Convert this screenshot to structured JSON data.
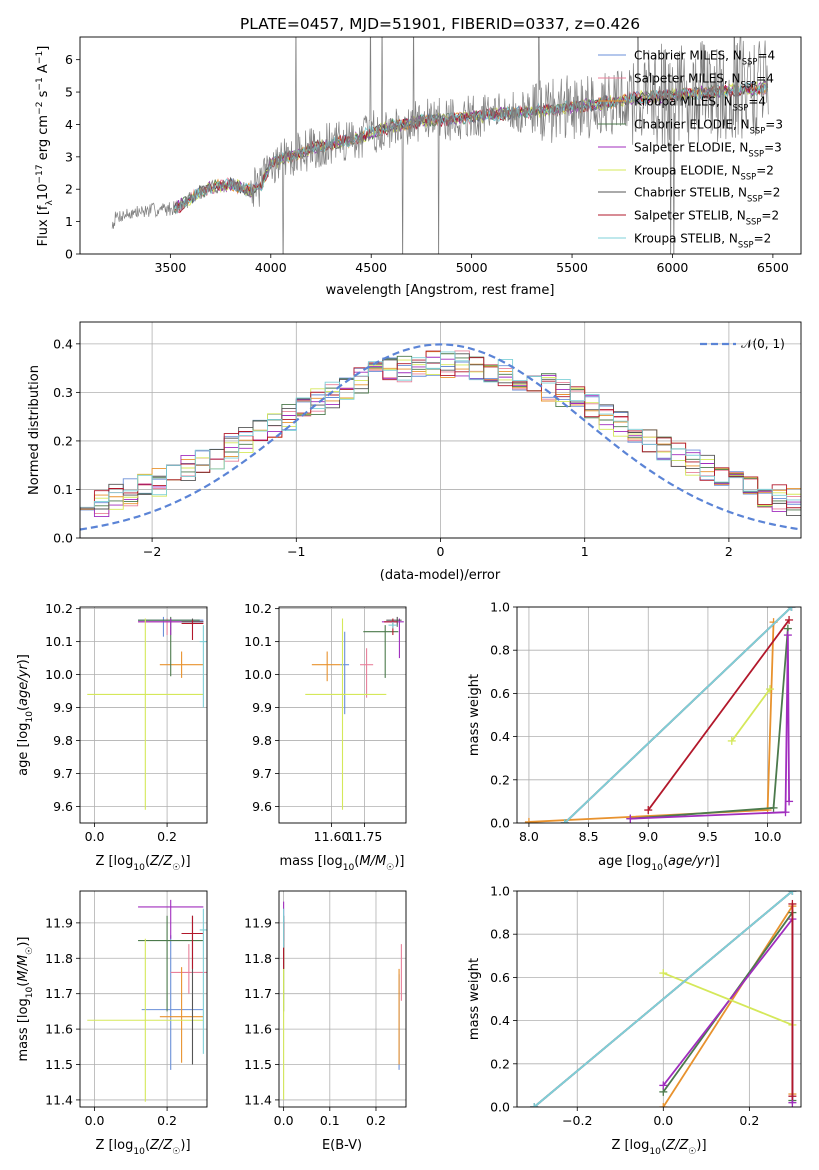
{
  "figure": {
    "title": "PLATE=0457, MJD=51901, FIBERID=0337, z=0.426"
  },
  "models": [
    {
      "name": "Chabrier MILES",
      "nssp": "4",
      "color": "#6a8fd8"
    },
    {
      "name": "Salpeter MILES",
      "nssp": "4",
      "color": "#e8809a"
    },
    {
      "name": "Kroupa MILES",
      "nssp": "4",
      "color": "#e8922e"
    },
    {
      "name": "Chabrier ELODIE",
      "nssp": "3",
      "color": "#4c7a4c"
    },
    {
      "name": "Salpeter ELODIE",
      "nssp": "3",
      "color": "#a02dbe"
    },
    {
      "name": "Kroupa ELODIE",
      "nssp": "2",
      "color": "#d5e85a"
    },
    {
      "name": "Chabrier STELIB",
      "nssp": "2",
      "color": "#555555"
    },
    {
      "name": "Salpeter STELIB",
      "nssp": "2",
      "color": "#b2182b"
    },
    {
      "name": "Kroupa STELIB",
      "nssp": "2",
      "color": "#7fd0d8"
    }
  ],
  "chart_data": [
    {
      "id": "spectrum",
      "type": "line",
      "xlabel": "wavelength [Angstrom, rest frame]",
      "ylabel": "Flux [f_λ 10^-17 erg cm^-2 s^-1 A^-1]",
      "xlim": [
        3050,
        6640
      ],
      "ylim": [
        0,
        6.7
      ],
      "xticks": [
        3500,
        4000,
        4500,
        5000,
        5500,
        6000,
        6500
      ],
      "yticks": [
        0,
        1,
        2,
        3,
        4,
        5,
        6
      ],
      "data_color": "#808080",
      "data_range": [
        3210,
        6480
      ],
      "model_range": [
        3520,
        6480
      ],
      "continuum": {
        "x": [
          3210,
          3230,
          3300,
          3400,
          3500,
          3550,
          3600,
          3650,
          3700,
          3750,
          3800,
          3850,
          3900,
          3950,
          4000,
          4100,
          4200,
          4300,
          4400,
          4500,
          4600,
          4700,
          4800,
          4900,
          5000,
          5100,
          5200,
          5300,
          5400,
          5500,
          5600,
          5700,
          5800,
          5900,
          6000,
          6100,
          6200,
          6300,
          6400,
          6480
        ],
        "y": [
          0.9,
          1.15,
          1.25,
          1.35,
          1.4,
          1.5,
          1.7,
          1.9,
          2.05,
          2.1,
          2.15,
          2.05,
          1.95,
          2.1,
          2.8,
          3.0,
          3.25,
          3.4,
          3.5,
          3.75,
          3.95,
          4.05,
          4.15,
          4.15,
          4.25,
          4.3,
          4.35,
          4.4,
          4.45,
          4.55,
          4.6,
          4.7,
          4.8,
          4.85,
          4.9,
          4.95,
          5.0,
          5.05,
          5.1,
          5.15
        ]
      },
      "legend_position": "upper right"
    },
    {
      "id": "residuals",
      "type": "line",
      "xlabel": "(data-model)/error",
      "ylabel": "Normed distribution",
      "xlim": [
        -2.5,
        2.5
      ],
      "ylim": [
        0,
        0.445
      ],
      "xticks": [
        -2,
        -1,
        0,
        1,
        2
      ],
      "yticks": [
        0.0,
        0.1,
        0.2,
        0.3,
        0.4
      ],
      "gaussian": {
        "label": "𝒩(0, 1)",
        "mean": 0,
        "sigma": 1,
        "color": "#5b84d6"
      },
      "hist_bins": [
        -2.5,
        2.5,
        50
      ],
      "legend_position": "upper right"
    },
    {
      "id": "age-vs-z",
      "type": "scatter",
      "xlabel": "Z [log10(Z/Z☉)]",
      "ylabel": "age [log10(age/yr)]",
      "xlim": [
        -0.04,
        0.31
      ],
      "ylim": [
        9.55,
        10.205
      ],
      "xticks": [
        0.0,
        0.2
      ],
      "yticks": [
        9.6,
        9.7,
        9.8,
        9.9,
        10.0,
        10.1,
        10.2
      ],
      "points": [
        {
          "x": 0.19,
          "y": 10.165,
          "xerr": [
            0.07,
            0.11
          ],
          "yerr": [
            0.05,
            0.01
          ],
          "model": 0
        },
        {
          "x": 0.2,
          "y": 10.16,
          "xerr": [
            0.08,
            0.1
          ],
          "yerr": [
            0.04,
            0.01
          ],
          "model": 1
        },
        {
          "x": 0.24,
          "y": 10.03,
          "xerr": [
            0.06,
            0.06
          ],
          "yerr": [
            0.04,
            0.04
          ],
          "model": 2
        },
        {
          "x": 0.21,
          "y": 10.165,
          "xerr": [
            0.09,
            0.08
          ],
          "yerr": [
            0.17,
            0.01
          ],
          "model": 3
        },
        {
          "x": 0.21,
          "y": 10.16,
          "xerr": [
            0.09,
            0.09
          ],
          "yerr": [
            0.04,
            0.01
          ],
          "model": 4
        },
        {
          "x": 0.14,
          "y": 9.94,
          "xerr": [
            0.16,
            0.16
          ],
          "yerr": [
            0.35,
            0.23
          ],
          "model": 5
        },
        {
          "x": 0.27,
          "y": 10.16,
          "xerr": [
            0.03,
            0.03
          ],
          "yerr": [
            0.01,
            0.01
          ],
          "model": 6
        },
        {
          "x": 0.27,
          "y": 10.155,
          "xerr": [
            0.03,
            0.03
          ],
          "yerr": [
            0.05,
            0.01
          ],
          "model": 7
        },
        {
          "x": 0.3,
          "y": 10.1,
          "xerr": [
            0.01,
            0.01
          ],
          "yerr": [
            0.2,
            0.05
          ],
          "model": 8
        }
      ]
    },
    {
      "id": "age-vs-mass",
      "type": "scatter",
      "xlabel": "mass [log10(M/M☉)]",
      "ylabel": "",
      "xlim": [
        11.36,
        11.94
      ],
      "ylim": [
        9.55,
        10.205
      ],
      "xticks": [
        11.6,
        11.75
      ],
      "yticks": [
        9.6,
        9.7,
        9.8,
        9.9,
        10.0,
        10.1,
        10.2
      ],
      "points": [
        {
          "x": 11.66,
          "y": 10.03,
          "xerr": [
            0.02,
            0.02
          ],
          "yerr": [
            0.15,
            0.1
          ],
          "model": 0
        },
        {
          "x": 11.76,
          "y": 10.03,
          "xerr": [
            0.03,
            0.03
          ],
          "yerr": [
            0.1,
            0.05
          ],
          "model": 1
        },
        {
          "x": 11.58,
          "y": 10.03,
          "xerr": [
            0.07,
            0.06
          ],
          "yerr": [
            0.05,
            0.04
          ],
          "model": 2
        },
        {
          "x": 11.845,
          "y": 10.13,
          "xerr": [
            0.1,
            0.06
          ],
          "yerr": [
            0.14,
            0.02
          ],
          "model": 3
        },
        {
          "x": 11.91,
          "y": 10.16,
          "xerr": [
            0.08,
            0.02
          ],
          "yerr": [
            0.11,
            0.01
          ],
          "model": 4
        },
        {
          "x": 11.65,
          "y": 9.94,
          "xerr": [
            0.17,
            0.2
          ],
          "yerr": [
            0.35,
            0.23
          ],
          "model": 5
        },
        {
          "x": 11.9,
          "y": 10.165,
          "xerr": [
            0.05,
            0.02
          ],
          "yerr": [
            0.02,
            0.01
          ],
          "model": 6
        },
        {
          "x": 11.88,
          "y": 10.16,
          "xerr": [
            0.04,
            0.02
          ],
          "yerr": [
            0.04,
            0.01
          ],
          "model": 7
        },
        {
          "x": 11.88,
          "y": 10.15,
          "xerr": [
            0.02,
            0.02
          ],
          "yerr": [
            0.01,
            0.01
          ],
          "model": 8
        }
      ]
    },
    {
      "id": "weight-vs-age",
      "type": "line",
      "xlabel": "age [log10(age/yr)]",
      "ylabel": "mass weight",
      "xlim": [
        7.9,
        10.28
      ],
      "ylim": [
        0,
        1.0
      ],
      "xticks": [
        8.0,
        8.5,
        9.0,
        9.5,
        10.0
      ],
      "yticks": [
        0.0,
        0.2,
        0.4,
        0.6,
        0.8,
        1.0
      ],
      "series": [
        {
          "model": 0,
          "x": [
            8.3,
            10.2
          ],
          "y": [
            0.0,
            1.0
          ]
        },
        {
          "model": 1,
          "x": [
            8.3,
            10.2
          ],
          "y": [
            0.0,
            1.0
          ]
        },
        {
          "model": 2,
          "x": [
            8.0,
            10.0,
            10.05
          ],
          "y": [
            0.005,
            0.06,
            0.93
          ]
        },
        {
          "model": 3,
          "x": [
            8.85,
            10.05,
            10.17
          ],
          "y": [
            0.02,
            0.07,
            0.9
          ]
        },
        {
          "model": 4,
          "x": [
            8.85,
            10.15,
            10.17,
            10.18
          ],
          "y": [
            0.02,
            0.05,
            0.87,
            0.1
          ]
        },
        {
          "model": 5,
          "x": [
            9.7,
            10.02
          ],
          "y": [
            0.38,
            0.62
          ]
        },
        {
          "model": 6,
          "x": [
            8.3,
            10.2
          ],
          "y": [
            0.0,
            1.0
          ]
        },
        {
          "model": 7,
          "x": [
            9.0,
            10.18
          ],
          "y": [
            0.06,
            0.94
          ]
        },
        {
          "model": 8,
          "x": [
            8.3,
            10.2
          ],
          "y": [
            0.0,
            1.0
          ]
        }
      ]
    },
    {
      "id": "mass-vs-z",
      "type": "scatter",
      "xlabel": "Z [log10(Z/Z☉)]",
      "ylabel": "mass [log10(M/M☉)]",
      "xlim": [
        -0.04,
        0.31
      ],
      "ylim": [
        11.38,
        11.99
      ],
      "xticks": [
        0.0,
        0.2
      ],
      "yticks": [
        11.4,
        11.5,
        11.6,
        11.7,
        11.8,
        11.9
      ],
      "points": [
        {
          "x": 0.21,
          "y": 11.655,
          "xerr": [
            0.08,
            0.09
          ],
          "yerr": [
            0.17,
            0.21
          ],
          "model": 0
        },
        {
          "x": 0.26,
          "y": 11.76,
          "xerr": [
            0.05,
            0.05
          ],
          "yerr": [
            0.06,
            0.08
          ],
          "model": 1
        },
        {
          "x": 0.24,
          "y": 11.635,
          "xerr": [
            0.06,
            0.06
          ],
          "yerr": [
            0.13,
            0.14
          ],
          "model": 2
        },
        {
          "x": 0.2,
          "y": 11.85,
          "xerr": [
            0.08,
            0.1
          ],
          "yerr": [
            0.2,
            0.07
          ],
          "model": 3
        },
        {
          "x": 0.21,
          "y": 11.945,
          "xerr": [
            0.09,
            0.09
          ],
          "yerr": [
            0.09,
            0.02
          ],
          "model": 4
        },
        {
          "x": 0.14,
          "y": 11.625,
          "xerr": [
            0.16,
            0.16
          ],
          "yerr": [
            0.23,
            0.23
          ],
          "model": 5
        },
        {
          "x": 0.27,
          "y": 11.87,
          "xerr": [
            0.03,
            0.03
          ],
          "yerr": [
            0.37,
            0.05
          ],
          "model": 6
        },
        {
          "x": 0.27,
          "y": 11.87,
          "xerr": [
            0.03,
            0.03
          ],
          "yerr": [
            0.1,
            0.05
          ],
          "model": 7
        },
        {
          "x": 0.3,
          "y": 11.88,
          "xerr": [
            0.01,
            0.01
          ],
          "yerr": [
            0.35,
            0.06
          ],
          "model": 8
        }
      ]
    },
    {
      "id": "mass-vs-ebv",
      "type": "scatter",
      "xlabel": "E(B-V)",
      "ylabel": "",
      "xlim": [
        -0.01,
        0.265
      ],
      "ylim": [
        11.38,
        11.99
      ],
      "xticks": [
        0.0,
        0.1,
        0.2
      ],
      "yticks": [
        11.4,
        11.5,
        11.6,
        11.7,
        11.8,
        11.9
      ],
      "points": [
        {
          "x": 0.25,
          "y": 11.655,
          "xerr": [
            0.0,
            0.0
          ],
          "yerr": [
            0.17,
            0.1
          ],
          "model": 0
        },
        {
          "x": 0.255,
          "y": 11.76,
          "xerr": [
            0.0,
            0.0
          ],
          "yerr": [
            0.08,
            0.08
          ],
          "model": 1
        },
        {
          "x": 0.25,
          "y": 11.65,
          "xerr": [
            0.0,
            0.0
          ],
          "yerr": [
            0.15,
            0.12
          ],
          "model": 2
        },
        {
          "x": 0.0,
          "y": 11.85,
          "xerr": [
            0.0,
            0.0
          ],
          "yerr": [
            0.2,
            0.07
          ],
          "model": 3
        },
        {
          "x": 0.0,
          "y": 11.94,
          "xerr": [
            0.0,
            0.0
          ],
          "yerr": [
            0.09,
            0.02
          ],
          "model": 4
        },
        {
          "x": 0.0,
          "y": 11.63,
          "xerr": [
            0.0,
            0.0
          ],
          "yerr": [
            0.23,
            0.2
          ],
          "model": 5
        },
        {
          "x": 0.0,
          "y": 11.87,
          "xerr": [
            0.0,
            0.0
          ],
          "yerr": [
            0.1,
            0.05
          ],
          "model": 6
        },
        {
          "x": 0.0,
          "y": 11.85,
          "xerr": [
            0.0,
            0.0
          ],
          "yerr": [
            0.08,
            0.05
          ],
          "model": 7
        },
        {
          "x": 0.0,
          "y": 11.88,
          "xerr": [
            0.0,
            0.0
          ],
          "yerr": [
            0.05,
            0.06
          ],
          "model": 8
        }
      ]
    },
    {
      "id": "weight-vs-z",
      "type": "line",
      "xlabel": "Z [log10(Z/Z☉)]",
      "ylabel": "mass weight",
      "xlim": [
        -0.34,
        0.32
      ],
      "ylim": [
        0,
        1.0
      ],
      "xticks": [
        -0.2,
        0.0,
        0.2
      ],
      "yticks": [
        0.0,
        0.2,
        0.4,
        0.6,
        0.8,
        1.0
      ],
      "series": [
        {
          "model": 0,
          "x": [
            -0.3,
            0.3
          ],
          "y": [
            0.0,
            1.0
          ]
        },
        {
          "model": 1,
          "x": [
            -0.3,
            0.3
          ],
          "y": [
            0.0,
            1.0
          ]
        },
        {
          "model": 2,
          "x": [
            0.0,
            0.3,
            0.3
          ],
          "y": [
            0.0,
            0.93,
            0.06
          ]
        },
        {
          "model": 3,
          "x": [
            0.0,
            0.3,
            0.3
          ],
          "y": [
            0.07,
            0.9,
            0.03
          ]
        },
        {
          "model": 4,
          "x": [
            0.0,
            0.3,
            0.3
          ],
          "y": [
            0.1,
            0.87,
            0.02
          ]
        },
        {
          "model": 5,
          "x": [
            0.0,
            0.3
          ],
          "y": [
            0.62,
            0.38
          ]
        },
        {
          "model": 6,
          "x": [
            -0.3,
            0.3
          ],
          "y": [
            0.0,
            1.0
          ]
        },
        {
          "model": 7,
          "x": [
            0.3,
            0.3
          ],
          "y": [
            0.05,
            0.94
          ]
        },
        {
          "model": 8,
          "x": [
            -0.3,
            0.3
          ],
          "y": [
            0.0,
            1.0
          ]
        }
      ]
    }
  ]
}
